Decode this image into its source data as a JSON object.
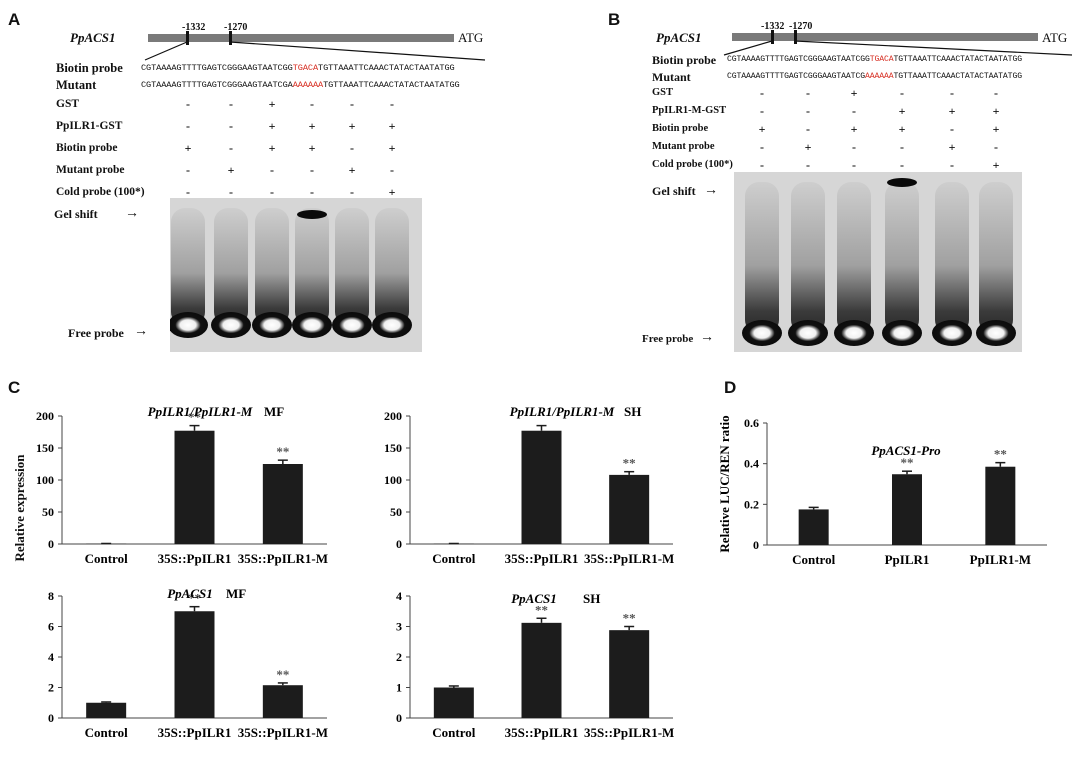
{
  "panelA": {
    "letter": "A",
    "gene": "PpACS1",
    "pos1": "-1332",
    "pos2": "-1270",
    "atg": "ATG",
    "biotin_label": "Biotin probe",
    "mutant_label": "Mutant",
    "seq_biotin_pre": "CGTAAAAGTTTTGAGTCGGGAAGTAATCGG",
    "seq_biotin_red": "TGACA",
    "seq_biotin_post": "TGTTAAATTCAAACTATACTAATATGG",
    "seq_mut_pre": "CGTAAAAGTTTTGAGTCGGGAAGTAATCGA",
    "seq_mut_red": "AAAAAA",
    "seq_mut_post": "TGTTAAATTCAAACTATACTAATATGG",
    "rows": [
      {
        "label": "GST",
        "signs": [
          "-",
          "-",
          "+",
          "-",
          "-",
          "-"
        ]
      },
      {
        "label": "PpILR1-GST",
        "signs": [
          "-",
          "-",
          "+",
          "+",
          "+",
          "+"
        ]
      },
      {
        "label": "Biotin probe",
        "signs": [
          "+",
          "-",
          "+",
          "+",
          "-",
          "+"
        ]
      },
      {
        "label": "Mutant probe",
        "signs": [
          "-",
          "+",
          "-",
          "-",
          "+",
          "-"
        ]
      },
      {
        "label": "Cold probe (100*)",
        "signs": [
          "-",
          "-",
          "-",
          "-",
          "-",
          "+"
        ]
      }
    ],
    "gel_shift": "Gel shift",
    "free_probe": "Free probe"
  },
  "panelB": {
    "letter": "B",
    "gene": "PpACS1",
    "pos1": "-1332",
    "pos2": "-1270",
    "atg": "ATG",
    "biotin_label": "Biotin probe",
    "mutant_label": "Mutant",
    "seq_biotin_pre": "CGTAAAAGTTTTGAGTCGGGAAGTAATCGG",
    "seq_biotin_red": "TGACA",
    "seq_biotin_post": "TGTTAAATTCAAACTATACTAATATGG",
    "seq_mut_pre": "CGTAAAAGTTTTGAGTCGGGAAGTAATCG",
    "seq_mut_red": "AAAAAA",
    "seq_mut_post": "TGTTAAATTCAAACTATACTAATATGG",
    "rows": [
      {
        "label": "GST",
        "signs": [
          "-",
          "-",
          "+",
          "-",
          "-",
          "-"
        ]
      },
      {
        "label": "PpILR1-M-GST",
        "signs": [
          "-",
          "-",
          "-",
          "+",
          "+",
          "+"
        ]
      },
      {
        "label": "Biotin probe",
        "signs": [
          "+",
          "-",
          "+",
          "+",
          "-",
          "+"
        ]
      },
      {
        "label": "Mutant probe",
        "signs": [
          "-",
          "+",
          "-",
          "-",
          "+",
          "-"
        ]
      },
      {
        "label": "Cold probe (100*)",
        "signs": [
          "-",
          "-",
          "-",
          "-",
          "-",
          "+"
        ]
      }
    ],
    "gel_shift": "Gel shift",
    "free_probe": "Free probe"
  },
  "panelC": {
    "letter": "C",
    "ylabel": "Relative expression"
  },
  "panelD": {
    "letter": "D"
  },
  "chart_data": [
    {
      "id": "C1",
      "type": "bar",
      "title_gene": "PpILR1/PpILR1-M",
      "title_tissue": "MF",
      "categories": [
        "Control",
        "35S::PpILR1",
        "35S::PpILR1-M"
      ],
      "values": [
        0.5,
        177,
        125
      ],
      "errors": [
        0.3,
        8,
        6
      ],
      "significance": [
        "",
        "**",
        "**"
      ],
      "ylim": [
        0,
        200
      ],
      "yticks": [
        0,
        50,
        100,
        150,
        200
      ],
      "ytick_labels": [
        "0",
        "50",
        "100",
        "150",
        "200"
      ]
    },
    {
      "id": "C2",
      "type": "bar",
      "title_gene": "PpILR1/PpILR1-M",
      "title_tissue": "SH",
      "categories": [
        "Control",
        "35S::PpILR1",
        "35S::PpILR1-M"
      ],
      "values": [
        0.5,
        177,
        108
      ],
      "errors": [
        0.3,
        8,
        5
      ],
      "significance": [
        "",
        "",
        "**"
      ],
      "ylim": [
        0,
        200
      ],
      "yticks": [
        0,
        50,
        100,
        150,
        200
      ],
      "ytick_labels": [
        "0",
        "50",
        "100",
        "150",
        "200"
      ]
    },
    {
      "id": "C3",
      "type": "bar",
      "title_gene": "PpACS1",
      "title_tissue": "MF",
      "categories": [
        "Control",
        "35S::PpILR1",
        "35S::PpILR1-M"
      ],
      "values": [
        1.0,
        7.0,
        2.15
      ],
      "errors": [
        0.05,
        0.3,
        0.15
      ],
      "significance": [
        "",
        "**",
        "**"
      ],
      "ylim": [
        0,
        8
      ],
      "yticks": [
        0,
        2,
        4,
        6,
        8
      ],
      "ytick_labels": [
        "0",
        "2",
        "4",
        "6",
        "8"
      ]
    },
    {
      "id": "C4",
      "type": "bar",
      "title_gene": "PpACS1",
      "title_tissue": "SH",
      "categories": [
        "Control",
        "35S::PpILR1",
        "35S::PpILR1-M"
      ],
      "values": [
        1.0,
        3.12,
        2.88
      ],
      "errors": [
        0.05,
        0.15,
        0.12
      ],
      "significance": [
        "",
        "**",
        "**"
      ],
      "ylim": [
        0,
        4
      ],
      "yticks": [
        0,
        1,
        2,
        3,
        4
      ],
      "ytick_labels": [
        "0",
        "1",
        "2",
        "3",
        "4"
      ]
    },
    {
      "id": "D1",
      "type": "bar",
      "title_gene": "PpACS1-Pro",
      "title_tissue": "",
      "ylabel": "Relative LUC/REN ratio",
      "categories": [
        "Control",
        "PpILR1",
        "PpILR1-M"
      ],
      "values": [
        0.175,
        0.348,
        0.385
      ],
      "errors": [
        0.01,
        0.015,
        0.02
      ],
      "significance": [
        "",
        "**",
        "**"
      ],
      "ylim": [
        0,
        0.6
      ],
      "yticks": [
        0,
        0.2,
        0.4,
        0.6
      ],
      "ytick_labels": [
        "0",
        "0.2",
        "0.4",
        "0.6"
      ]
    }
  ]
}
